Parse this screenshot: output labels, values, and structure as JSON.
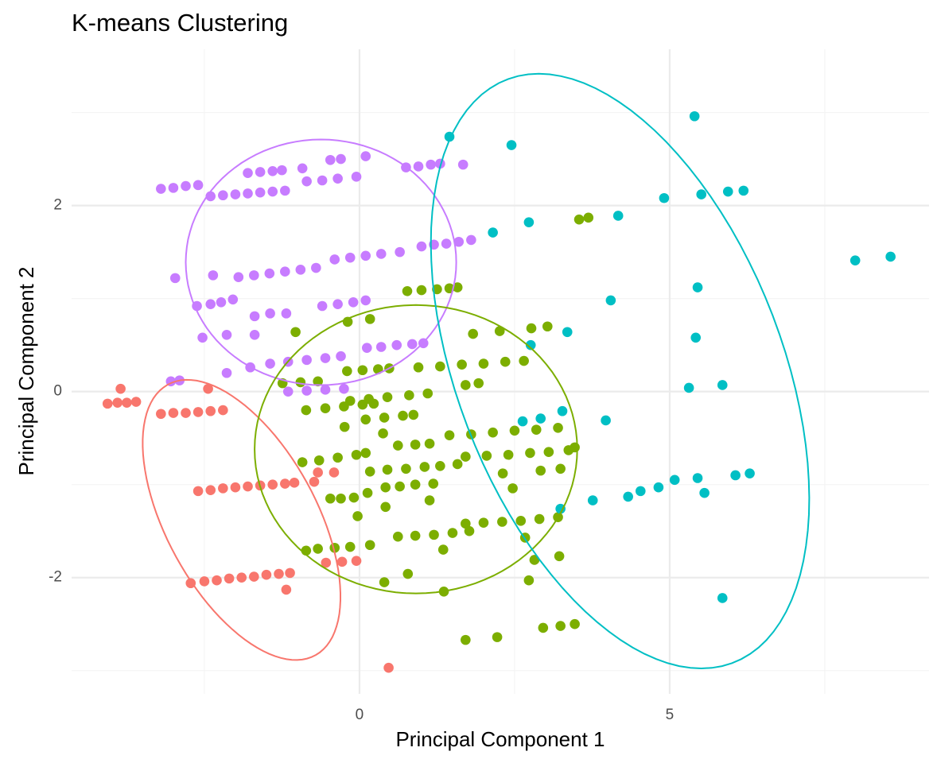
{
  "chart_data": {
    "type": "scatter",
    "title": "K-means Clustering",
    "x_label": "Principal Component 1",
    "y_label": "Principal Component 2",
    "xlim": [
      -4.64,
      9.18
    ],
    "ylim": [
      -3.25,
      3.68
    ],
    "xticks": [
      0,
      5
    ],
    "yticks": [
      -2,
      0,
      2
    ],
    "xminorticks": [
      -2.5,
      2.5,
      7.5
    ],
    "yminorticks": [
      -3,
      -1,
      1,
      3
    ],
    "grid": true,
    "series": [
      {
        "color": "#F8766D",
        "x": [
          -4.06,
          -3.9,
          -3.75,
          -3.6,
          -3.85,
          -2.44,
          -3.2,
          -3.0,
          -2.8,
          -2.6,
          -2.4,
          -2.2,
          -2.6,
          -2.4,
          -2.2,
          -2.0,
          -1.8,
          -1.6,
          -1.4,
          -1.2,
          -1.05,
          -0.73,
          -0.41,
          -0.67,
          -2.72,
          -2.5,
          -2.3,
          -2.1,
          -1.9,
          -1.7,
          -1.5,
          -1.3,
          -1.12,
          -1.18,
          -0.54,
          -0.28,
          -0.05,
          0.47
        ],
        "y": [
          -0.13,
          -0.12,
          -0.12,
          -0.11,
          0.03,
          0.03,
          -0.24,
          -0.23,
          -0.23,
          -0.22,
          -0.21,
          -0.2,
          -1.07,
          -1.06,
          -1.04,
          -1.03,
          -1.02,
          -1.01,
          -1.0,
          -0.99,
          -0.98,
          -0.97,
          -0.87,
          -0.87,
          -2.06,
          -2.04,
          -2.03,
          -2.01,
          -2.0,
          -1.99,
          -1.97,
          -1.96,
          -1.95,
          -2.13,
          -1.84,
          -1.83,
          -1.82,
          -2.97
        ],
        "ellipse": {
          "center": [
            -1.9,
            -1.38
          ],
          "axis1": [
            -0.54,
            1.465
          ],
          "axis2": [
            1.5,
            -0.35
          ]
        }
      },
      {
        "color": "#C77CFF",
        "x": [
          -3.2,
          -3.0,
          -2.8,
          -2.6,
          -1.8,
          -1.6,
          -1.4,
          -1.25,
          -0.92,
          -0.47,
          -0.3,
          0.1,
          -2.4,
          -2.2,
          -2.0,
          -1.8,
          -1.6,
          -1.4,
          -1.2,
          -0.85,
          -0.6,
          -0.35,
          -0.05,
          0.75,
          0.95,
          1.15,
          1.3,
          1.67,
          -1.95,
          -1.7,
          -1.45,
          -1.2,
          -0.95,
          -0.7,
          -0.4,
          -0.15,
          0.1,
          0.35,
          0.65,
          1.0,
          1.2,
          1.4,
          1.6,
          1.8,
          -2.97,
          -2.36,
          -2.62,
          -2.4,
          -2.23,
          -2.04,
          -1.69,
          -1.44,
          -1.18,
          -0.6,
          -0.35,
          -0.1,
          0.1,
          0.12,
          0.35,
          0.6,
          0.85,
          1.03,
          -1.44,
          -1.15,
          -0.85,
          -0.55,
          -0.3,
          -2.53,
          -2.14,
          -1.69,
          -3.04,
          -2.9,
          -2.14,
          -1.76,
          -1.15,
          -0.85,
          -0.55,
          -0.25
        ],
        "y": [
          2.18,
          2.19,
          2.21,
          2.22,
          2.35,
          2.36,
          2.37,
          2.38,
          2.4,
          2.49,
          2.5,
          2.53,
          2.1,
          2.11,
          2.12,
          2.13,
          2.14,
          2.15,
          2.16,
          2.26,
          2.27,
          2.29,
          2.31,
          2.41,
          2.42,
          2.44,
          2.45,
          2.44,
          1.23,
          1.25,
          1.27,
          1.29,
          1.31,
          1.33,
          1.42,
          1.44,
          1.46,
          1.48,
          1.5,
          1.56,
          1.58,
          1.59,
          1.61,
          1.63,
          1.22,
          1.25,
          0.92,
          0.94,
          0.96,
          0.99,
          0.81,
          0.84,
          0.84,
          0.92,
          0.94,
          0.96,
          0.98,
          0.47,
          0.48,
          0.5,
          0.51,
          0.52,
          0.3,
          0.32,
          0.34,
          0.36,
          0.38,
          0.58,
          0.61,
          0.61,
          0.11,
          0.12,
          0.2,
          0.26,
          0.0,
          0.01,
          0.02,
          0.03
        ],
        "ellipse": {
          "center": [
            -0.62,
            1.39
          ],
          "axis1": [
            2.18,
            0
          ],
          "axis2": [
            0,
            1.32
          ]
        }
      },
      {
        "color": "#7CAE00",
        "x": [
          3.54,
          3.69,
          0.77,
          1.0,
          1.25,
          1.45,
          1.58,
          -1.03,
          0.17,
          -0.19,
          1.83,
          2.26,
          2.77,
          3.03,
          -0.2,
          0.05,
          0.3,
          0.48,
          0.95,
          1.3,
          1.65,
          2.0,
          2.35,
          2.65,
          -1.24,
          -0.95,
          -0.67,
          -0.15,
          0.15,
          0.45,
          0.8,
          1.1,
          1.71,
          1.92,
          -0.86,
          -0.55,
          -0.25,
          0.05,
          0.23,
          0.1,
          0.4,
          0.7,
          0.87,
          -0.24,
          0.38,
          0.62,
          0.9,
          1.13,
          1.45,
          1.8,
          2.15,
          2.5,
          2.85,
          3.2,
          -0.92,
          -0.65,
          -0.35,
          -0.05,
          0.1,
          1.71,
          2.05,
          2.4,
          2.75,
          3.05,
          3.37,
          3.47,
          0.17,
          0.45,
          0.75,
          1.05,
          1.3,
          1.58,
          2.31,
          2.47,
          2.92,
          3.24,
          0.42,
          0.65,
          0.9,
          1.19,
          -0.47,
          -0.3,
          -0.09,
          0.13,
          0.42,
          1.13,
          -0.03,
          1.71,
          2.0,
          2.3,
          2.6,
          2.9,
          3.2,
          0.62,
          0.9,
          1.2,
          1.5,
          1.77,
          -0.86,
          -0.67,
          -0.4,
          -0.15,
          0.17,
          1.35,
          2.67,
          2.82,
          3.22,
          0.4,
          0.78,
          1.36,
          2.73,
          1.71,
          2.22,
          2.96,
          3.24,
          3.47
        ],
        "y": [
          1.85,
          1.87,
          1.08,
          1.09,
          1.1,
          1.11,
          1.12,
          0.64,
          0.78,
          0.75,
          0.62,
          0.65,
          0.68,
          0.7,
          0.22,
          0.23,
          0.24,
          0.25,
          0.26,
          0.27,
          0.29,
          0.3,
          0.32,
          0.33,
          0.09,
          0.1,
          0.11,
          -0.1,
          -0.08,
          -0.06,
          -0.04,
          -0.02,
          0.07,
          0.09,
          -0.2,
          -0.18,
          -0.16,
          -0.14,
          -0.13,
          -0.3,
          -0.28,
          -0.26,
          -0.25,
          -0.38,
          -0.45,
          -0.58,
          -0.57,
          -0.56,
          -0.47,
          -0.46,
          -0.44,
          -0.42,
          -0.41,
          -0.39,
          -0.76,
          -0.74,
          -0.71,
          -0.68,
          -0.66,
          -0.7,
          -0.69,
          -0.68,
          -0.66,
          -0.65,
          -0.63,
          -0.6,
          -0.86,
          -0.84,
          -0.83,
          -0.81,
          -0.8,
          -0.78,
          -0.88,
          -1.04,
          -0.85,
          -0.83,
          -1.03,
          -1.02,
          -1.0,
          -0.99,
          -1.15,
          -1.15,
          -1.14,
          -1.09,
          -1.24,
          -1.17,
          -1.34,
          -1.42,
          -1.41,
          -1.4,
          -1.39,
          -1.37,
          -1.35,
          -1.56,
          -1.55,
          -1.54,
          -1.52,
          -1.5,
          -1.71,
          -1.69,
          -1.68,
          -1.67,
          -1.65,
          -1.7,
          -1.57,
          -1.81,
          -1.77,
          -2.05,
          -1.96,
          -2.15,
          -2.03,
          -2.67,
          -2.64,
          -2.54,
          -2.52,
          -2.5
        ],
        "ellipse": {
          "center": [
            0.91,
            -0.62
          ],
          "axis1": [
            2.6,
            0
          ],
          "axis2": [
            0,
            1.55
          ]
        }
      },
      {
        "color": "#00BFC4",
        "x": [
          1.45,
          2.45,
          5.4,
          2.15,
          2.73,
          4.17,
          4.91,
          5.51,
          5.94,
          6.19,
          7.99,
          8.56,
          4.05,
          5.45,
          5.42,
          3.35,
          2.76,
          5.31,
          5.85,
          2.63,
          2.92,
          3.27,
          3.97,
          3.24,
          3.76,
          4.33,
          4.53,
          4.82,
          5.08,
          5.45,
          5.56,
          6.06,
          6.29,
          5.85
        ],
        "y": [
          2.74,
          2.65,
          2.96,
          1.71,
          1.82,
          1.89,
          2.08,
          2.12,
          2.15,
          2.16,
          1.41,
          1.45,
          0.98,
          1.12,
          0.58,
          0.64,
          0.5,
          0.04,
          0.07,
          -0.32,
          -0.29,
          -0.21,
          -0.31,
          -1.26,
          -1.17,
          -1.13,
          -1.07,
          -1.03,
          -0.95,
          -0.93,
          -1.09,
          -0.9,
          -0.88,
          -2.22
        ],
        "ellipse": {
          "center": [
            4.2,
            0.22
          ],
          "axis1": [
            -0.77,
            3.14
          ],
          "axis2": [
            2.95,
            -0.6
          ]
        }
      }
    ]
  }
}
